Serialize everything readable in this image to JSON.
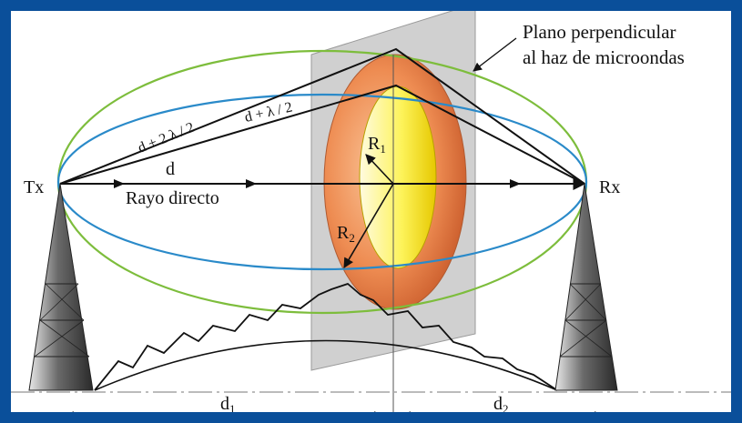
{
  "labels": {
    "tx": "Tx",
    "rx": "Rx",
    "d": "d",
    "direct_ray": "Rayo directo",
    "path1": "d + λ / 2",
    "path2": "d + 2 λ / 2",
    "r1": "R",
    "r1_sub": "1",
    "r2": "R",
    "r2_sub": "2",
    "plane_line1": "Plano perpendicular",
    "plane_line2": "al haz de microondas",
    "d1": "d",
    "d1_sub": "1",
    "d2": "d",
    "d2_sub": "2"
  },
  "colors": {
    "frame": "#0a4f9a",
    "ellipse_outer": "#7dbd3c",
    "ellipse_inner": "#2a8ac9",
    "zone_outer": "#e9834a",
    "zone_inner": "#f7f24a",
    "plane": "#c4c4c4",
    "tower": "#3a3a3a"
  }
}
